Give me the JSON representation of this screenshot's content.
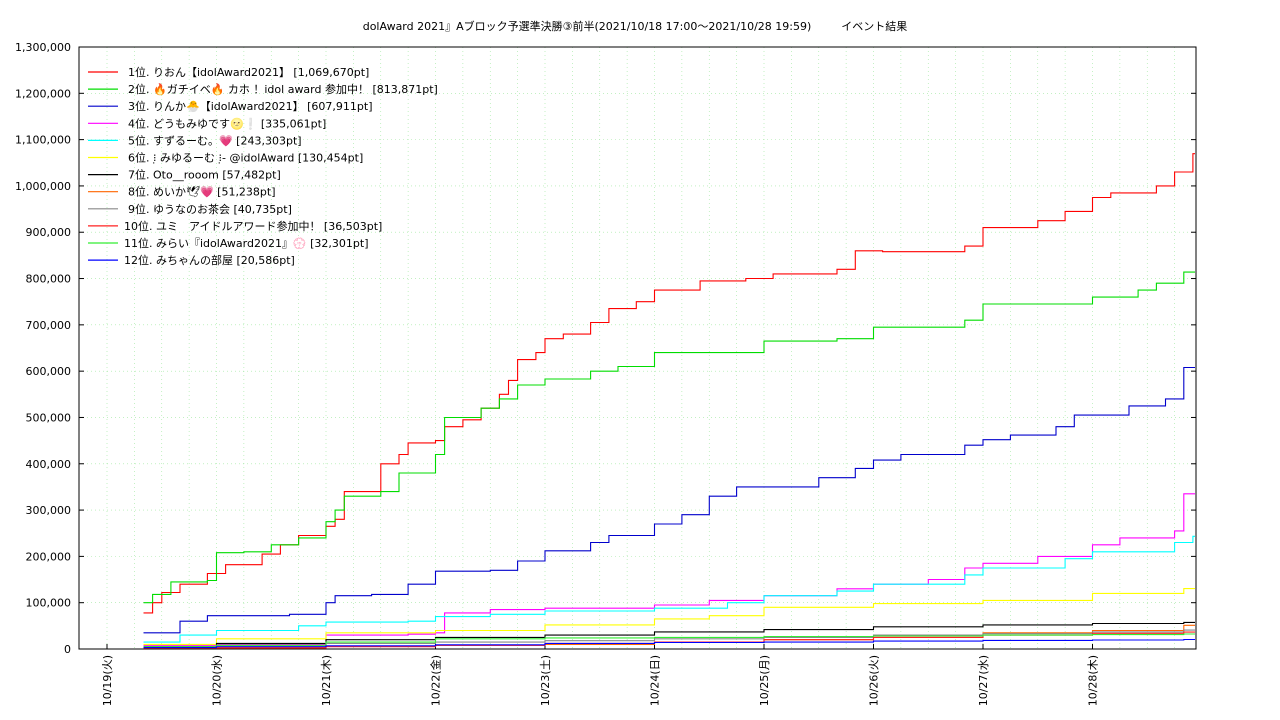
{
  "chart_data": {
    "type": "line",
    "title": "dolAward 2021』Aブロック予選準決勝③前半(2021/10/18 17:00～2021/10/28 19:59)",
    "title_suffix": "イベント結果",
    "xlabel": "",
    "ylabel": "",
    "ylim": [
      0,
      1300000
    ],
    "xlim": [
      "2021-10-19 00:00",
      "2021-10-29 00:00"
    ],
    "x_ticks": [
      "10/19(火)",
      "10/20(水)",
      "10/21(木)",
      "10/22(金)",
      "10/23(土)",
      "10/24(日)",
      "10/25(月)",
      "10/26(火)",
      "10/27(水)",
      "10/28(木)"
    ],
    "y_ticks": [
      "0",
      "100,000",
      "200,000",
      "300,000",
      "400,000",
      "500,000",
      "600,000",
      "700,000",
      "800,000",
      "900,000",
      "1,000,000",
      "1,100,000",
      "1,200,000",
      "1,300,000"
    ],
    "grid": true,
    "legend_position": "top-left",
    "series": [
      {
        "name": "1位. りおん【idolAward2021】 [1,069,670pt]",
        "color": "#ff0000",
        "points": [
          [
            "10-19 08:00",
            78000
          ],
          [
            "10-19 10:00",
            100000
          ],
          [
            "10-19 12:00",
            122000
          ],
          [
            "10-19 16:00",
            140000
          ],
          [
            "10-19 22:00",
            163000
          ],
          [
            "10-20 02:00",
            182000
          ],
          [
            "10-20 10:00",
            205000
          ],
          [
            "10-20 14:00",
            225000
          ],
          [
            "10-20 18:00",
            245000
          ],
          [
            "10-21 00:00",
            265000
          ],
          [
            "10-21 02:00",
            280000
          ],
          [
            "10-21 04:00",
            340000
          ],
          [
            "10-21 12:00",
            400000
          ],
          [
            "10-21 16:00",
            420000
          ],
          [
            "10-21 18:00",
            445000
          ],
          [
            "10-22 00:00",
            450000
          ],
          [
            "10-22 02:00",
            480000
          ],
          [
            "10-22 06:00",
            495000
          ],
          [
            "10-22 10:00",
            520000
          ],
          [
            "10-22 14:00",
            550000
          ],
          [
            "10-22 16:00",
            580000
          ],
          [
            "10-22 18:00",
            625000
          ],
          [
            "10-22 22:00",
            640000
          ],
          [
            "10-23 00:00",
            670000
          ],
          [
            "10-23 04:00",
            680000
          ],
          [
            "10-23 10:00",
            705000
          ],
          [
            "10-23 14:00",
            735000
          ],
          [
            "10-23 20:00",
            750000
          ],
          [
            "10-24 00:00",
            775000
          ],
          [
            "10-24 10:00",
            795000
          ],
          [
            "10-24 20:00",
            800000
          ],
          [
            "10-25 02:00",
            810000
          ],
          [
            "10-25 16:00",
            820000
          ],
          [
            "10-25 20:00",
            860000
          ],
          [
            "10-26 02:00",
            858000
          ],
          [
            "10-26 20:00",
            870000
          ],
          [
            "10-27 00:00",
            910000
          ],
          [
            "10-27 12:00",
            925000
          ],
          [
            "10-27 18:00",
            945000
          ],
          [
            "10-28 00:00",
            975000
          ],
          [
            "10-28 04:00",
            985000
          ],
          [
            "10-28 14:00",
            1000000
          ],
          [
            "10-28 18:00",
            1030000
          ],
          [
            "10-28 22:00",
            1069670
          ]
        ]
      },
      {
        "name": "2位. 🔥ガチイベ🔥 カホ ！idol award 参加中！ [813,871pt]",
        "color": "#00dd00",
        "points": [
          [
            "10-19 08:00",
            100000
          ],
          [
            "10-19 10:00",
            118000
          ],
          [
            "10-19 14:00",
            145000
          ],
          [
            "10-19 22:00",
            148000
          ],
          [
            "10-20 00:00",
            208000
          ],
          [
            "10-20 06:00",
            210000
          ],
          [
            "10-20 12:00",
            225000
          ],
          [
            "10-20 18:00",
            240000
          ],
          [
            "10-21 00:00",
            275000
          ],
          [
            "10-21 02:00",
            300000
          ],
          [
            "10-21 04:00",
            330000
          ],
          [
            "10-21 12:00",
            340000
          ],
          [
            "10-21 16:00",
            380000
          ],
          [
            "10-22 00:00",
            420000
          ],
          [
            "10-22 02:00",
            500000
          ],
          [
            "10-22 10:00",
            520000
          ],
          [
            "10-22 14:00",
            540000
          ],
          [
            "10-22 18:00",
            570000
          ],
          [
            "10-23 00:00",
            583000
          ],
          [
            "10-23 10:00",
            600000
          ],
          [
            "10-23 16:00",
            610000
          ],
          [
            "10-24 00:00",
            640000
          ],
          [
            "10-25 00:00",
            665000
          ],
          [
            "10-25 16:00",
            670000
          ],
          [
            "10-26 00:00",
            695000
          ],
          [
            "10-26 20:00",
            710000
          ],
          [
            "10-27 00:00",
            745000
          ],
          [
            "10-28 00:00",
            760000
          ],
          [
            "10-28 10:00",
            775000
          ],
          [
            "10-28 14:00",
            790000
          ],
          [
            "10-28 20:00",
            813871
          ]
        ]
      },
      {
        "name": "3位. りんか🐣【idolAward2021】 [607,911pt]",
        "color": "#0000cc",
        "points": [
          [
            "10-19 08:00",
            35000
          ],
          [
            "10-19 12:00",
            35000
          ],
          [
            "10-19 16:00",
            60000
          ],
          [
            "10-19 22:00",
            72000
          ],
          [
            "10-20 16:00",
            75000
          ],
          [
            "10-21 00:00",
            100000
          ],
          [
            "10-21 02:00",
            115000
          ],
          [
            "10-21 10:00",
            118000
          ],
          [
            "10-21 18:00",
            140000
          ],
          [
            "10-22 00:00",
            168000
          ],
          [
            "10-22 12:00",
            170000
          ],
          [
            "10-22 18:00",
            190000
          ],
          [
            "10-23 00:00",
            212000
          ],
          [
            "10-23 10:00",
            230000
          ],
          [
            "10-23 14:00",
            245000
          ],
          [
            "10-24 00:00",
            270000
          ],
          [
            "10-24 06:00",
            290000
          ],
          [
            "10-24 12:00",
            330000
          ],
          [
            "10-24 18:00",
            350000
          ],
          [
            "10-25 12:00",
            370000
          ],
          [
            "10-25 20:00",
            390000
          ],
          [
            "10-26 00:00",
            408000
          ],
          [
            "10-26 06:00",
            420000
          ],
          [
            "10-26 20:00",
            440000
          ],
          [
            "10-27 00:00",
            452000
          ],
          [
            "10-27 06:00",
            462000
          ],
          [
            "10-27 16:00",
            480000
          ],
          [
            "10-27 20:00",
            505000
          ],
          [
            "10-28 08:00",
            525000
          ],
          [
            "10-28 16:00",
            540000
          ],
          [
            "10-28 20:00",
            607911
          ]
        ]
      },
      {
        "name": "4位. どうもみゆです🌝❕ [335,061pt]",
        "color": "#ff00ff",
        "points": [
          [
            "10-19 08:00",
            8000
          ],
          [
            "10-20 00:00",
            10000
          ],
          [
            "10-21 00:00",
            30000
          ],
          [
            "10-21 18:00",
            32000
          ],
          [
            "10-22 00:00",
            35000
          ],
          [
            "10-22 02:00",
            78000
          ],
          [
            "10-22 12:00",
            85000
          ],
          [
            "10-23 00:00",
            88000
          ],
          [
            "10-24 00:00",
            95000
          ],
          [
            "10-24 12:00",
            105000
          ],
          [
            "10-25 00:00",
            115000
          ],
          [
            "10-25 16:00",
            130000
          ],
          [
            "10-26 00:00",
            140000
          ],
          [
            "10-26 12:00",
            150000
          ],
          [
            "10-26 20:00",
            175000
          ],
          [
            "10-27 00:00",
            185000
          ],
          [
            "10-27 12:00",
            200000
          ],
          [
            "10-28 00:00",
            225000
          ],
          [
            "10-28 06:00",
            240000
          ],
          [
            "10-28 18:00",
            255000
          ],
          [
            "10-28 20:00",
            335061
          ]
        ]
      },
      {
        "name": "5位. すずるーむ。💗 [243,303pt]",
        "color": "#00ffff",
        "points": [
          [
            "10-19 08:00",
            15000
          ],
          [
            "10-19 16:00",
            30000
          ],
          [
            "10-20 00:00",
            40000
          ],
          [
            "10-20 18:00",
            50000
          ],
          [
            "10-21 00:00",
            58000
          ],
          [
            "10-21 18:00",
            60000
          ],
          [
            "10-22 00:00",
            70000
          ],
          [
            "10-22 12:00",
            75000
          ],
          [
            "10-23 00:00",
            82000
          ],
          [
            "10-24 00:00",
            88000
          ],
          [
            "10-24 16:00",
            100000
          ],
          [
            "10-25 00:00",
            115000
          ],
          [
            "10-25 16:00",
            125000
          ],
          [
            "10-26 00:00",
            140000
          ],
          [
            "10-26 20:00",
            160000
          ],
          [
            "10-27 00:00",
            175000
          ],
          [
            "10-27 18:00",
            195000
          ],
          [
            "10-28 00:00",
            210000
          ],
          [
            "10-28 18:00",
            230000
          ],
          [
            "10-28 22:00",
            243303
          ]
        ]
      },
      {
        "name": "6位. ⁝̣ みゆるーむ ⁝̣- @idolAward [130,454pt]",
        "color": "#ffff00",
        "points": [
          [
            "10-19 08:00",
            10000
          ],
          [
            "10-20 00:00",
            22000
          ],
          [
            "10-21 00:00",
            35000
          ],
          [
            "10-22 00:00",
            40000
          ],
          [
            "10-23 00:00",
            52000
          ],
          [
            "10-24 00:00",
            65000
          ],
          [
            "10-24 12:00",
            72000
          ],
          [
            "10-25 00:00",
            90000
          ],
          [
            "10-26 00:00",
            98000
          ],
          [
            "10-27 00:00",
            105000
          ],
          [
            "10-28 00:00",
            120000
          ],
          [
            "10-28 20:00",
            130454
          ]
        ]
      },
      {
        "name": "7位. Oto__rooom [57,482pt]",
        "color": "#000000",
        "points": [
          [
            "10-19 08:00",
            5000
          ],
          [
            "10-20 00:00",
            12000
          ],
          [
            "10-21 00:00",
            20000
          ],
          [
            "10-22 00:00",
            25000
          ],
          [
            "10-23 00:00",
            30000
          ],
          [
            "10-24 00:00",
            37000
          ],
          [
            "10-25 00:00",
            42000
          ],
          [
            "10-26 00:00",
            48000
          ],
          [
            "10-27 00:00",
            52000
          ],
          [
            "10-28 00:00",
            55000
          ],
          [
            "10-28 20:00",
            57482
          ]
        ]
      },
      {
        "name": "8位. めいか🕊💗 [51,238pt]",
        "color": "#ff6600",
        "points": [
          [
            "10-19 08:00",
            3000
          ],
          [
            "10-21 00:00",
            6000
          ],
          [
            "10-22 00:00",
            8000
          ],
          [
            "10-23 00:00",
            10000
          ],
          [
            "10-24 00:00",
            14000
          ],
          [
            "10-25 00:00",
            20000
          ],
          [
            "10-26 00:00",
            25000
          ],
          [
            "10-27 00:00",
            35000
          ],
          [
            "10-28 00:00",
            40000
          ],
          [
            "10-28 20:00",
            51238
          ]
        ]
      },
      {
        "name": "9位. ゆうなのお茶会 [40,735pt]",
        "color": "#888888",
        "points": [
          [
            "10-19 08:00",
            4000
          ],
          [
            "10-20 00:00",
            8000
          ],
          [
            "10-21 00:00",
            12000
          ],
          [
            "10-22 00:00",
            15000
          ],
          [
            "10-23 00:00",
            18000
          ],
          [
            "10-24 00:00",
            22000
          ],
          [
            "10-25 00:00",
            25000
          ],
          [
            "10-26 00:00",
            30000
          ],
          [
            "10-27 00:00",
            33000
          ],
          [
            "10-28 00:00",
            37000
          ],
          [
            "10-28 20:00",
            40735
          ]
        ]
      },
      {
        "name": "10位. ユミ　アイドルアワード参加中！ [36,503pt]",
        "color": "#ff2222",
        "points": [
          [
            "10-19 08:00",
            2000
          ],
          [
            "10-21 00:00",
            5000
          ],
          [
            "10-22 00:00",
            8000
          ],
          [
            "10-23 00:00",
            12000
          ],
          [
            "10-24 00:00",
            15000
          ],
          [
            "10-25 00:00",
            20000
          ],
          [
            "10-26 00:00",
            25000
          ],
          [
            "10-27 00:00",
            30000
          ],
          [
            "10-28 00:00",
            34000
          ],
          [
            "10-28 20:00",
            36503
          ]
        ]
      },
      {
        "name": "11位. みらい『idolAward2021』💮 [32,301pt]",
        "color": "#33ee33",
        "points": [
          [
            "10-19 08:00",
            5000
          ],
          [
            "10-20 00:00",
            8000
          ],
          [
            "10-21 00:00",
            15000
          ],
          [
            "10-22 00:00",
            22000
          ],
          [
            "10-23 00:00",
            24000
          ],
          [
            "10-24 00:00",
            25000
          ],
          [
            "10-25 00:00",
            27000
          ],
          [
            "10-26 00:00",
            28000
          ],
          [
            "10-27 00:00",
            30000
          ],
          [
            "10-28 00:00",
            31000
          ],
          [
            "10-28 20:00",
            32301
          ]
        ]
      },
      {
        "name": "12位. みちゃんの部屋 [20,586pt]",
        "color": "#0000ff",
        "points": [
          [
            "10-19 08:00",
            3000
          ],
          [
            "10-20 00:00",
            5000
          ],
          [
            "10-21 00:00",
            7000
          ],
          [
            "10-22 00:00",
            9000
          ],
          [
            "10-23 00:00",
            12000
          ],
          [
            "10-24 00:00",
            14000
          ],
          [
            "10-25 00:00",
            15000
          ],
          [
            "10-26 00:00",
            17000
          ],
          [
            "10-27 00:00",
            18500
          ],
          [
            "10-28 00:00",
            19500
          ],
          [
            "10-28 20:00",
            20586
          ]
        ]
      }
    ]
  }
}
